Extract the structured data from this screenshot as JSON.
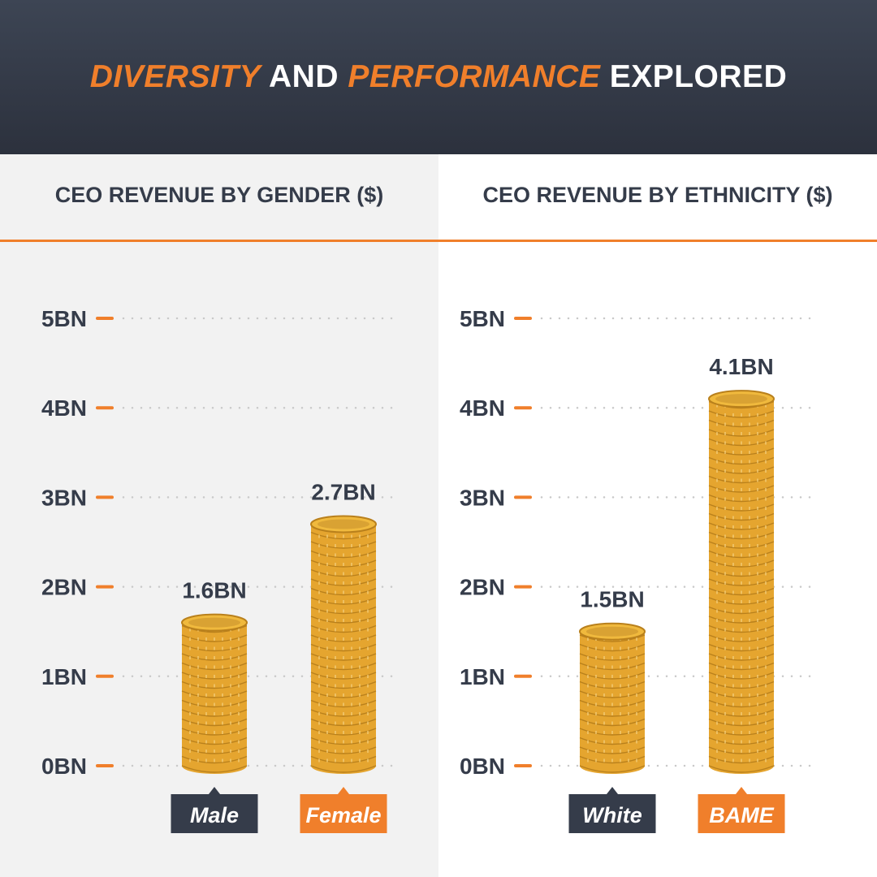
{
  "header": {
    "title_parts": [
      {
        "text": "DIVERSITY",
        "accent": true
      },
      {
        "text": " AND ",
        "accent": false
      },
      {
        "text": "PERFORMANCE",
        "accent": true
      },
      {
        "text": " EXPLORED",
        "accent": false
      }
    ]
  },
  "colors": {
    "accent": "#f07f2b",
    "dark": "#353c4a",
    "coin": "#e5a52f",
    "coin_dark": "#b9801c"
  },
  "chart_data": [
    {
      "type": "bar",
      "title": "CEO REVENUE BY GENDER ($)",
      "categories": [
        "Male",
        "Female"
      ],
      "values": [
        1.6,
        2.7
      ],
      "value_labels": [
        "1.6BN",
        "2.7BN"
      ],
      "category_styles": [
        "dark",
        "accent"
      ],
      "ylim": [
        0,
        5
      ],
      "yticks": [
        0,
        1,
        2,
        3,
        4,
        5
      ],
      "ytick_labels": [
        "0BN",
        "1BN",
        "2BN",
        "3BN",
        "4BN",
        "5BN"
      ],
      "grid": true
    },
    {
      "type": "bar",
      "title": "CEO REVENUE BY ETHNICITY ($)",
      "categories": [
        "White",
        "BAME"
      ],
      "values": [
        1.5,
        4.1
      ],
      "value_labels": [
        "1.5BN",
        "4.1BN"
      ],
      "category_styles": [
        "dark",
        "accent"
      ],
      "ylim": [
        0,
        5
      ],
      "yticks": [
        0,
        1,
        2,
        3,
        4,
        5
      ],
      "ytick_labels": [
        "0BN",
        "1BN",
        "2BN",
        "3BN",
        "4BN",
        "5BN"
      ],
      "grid": true
    }
  ]
}
